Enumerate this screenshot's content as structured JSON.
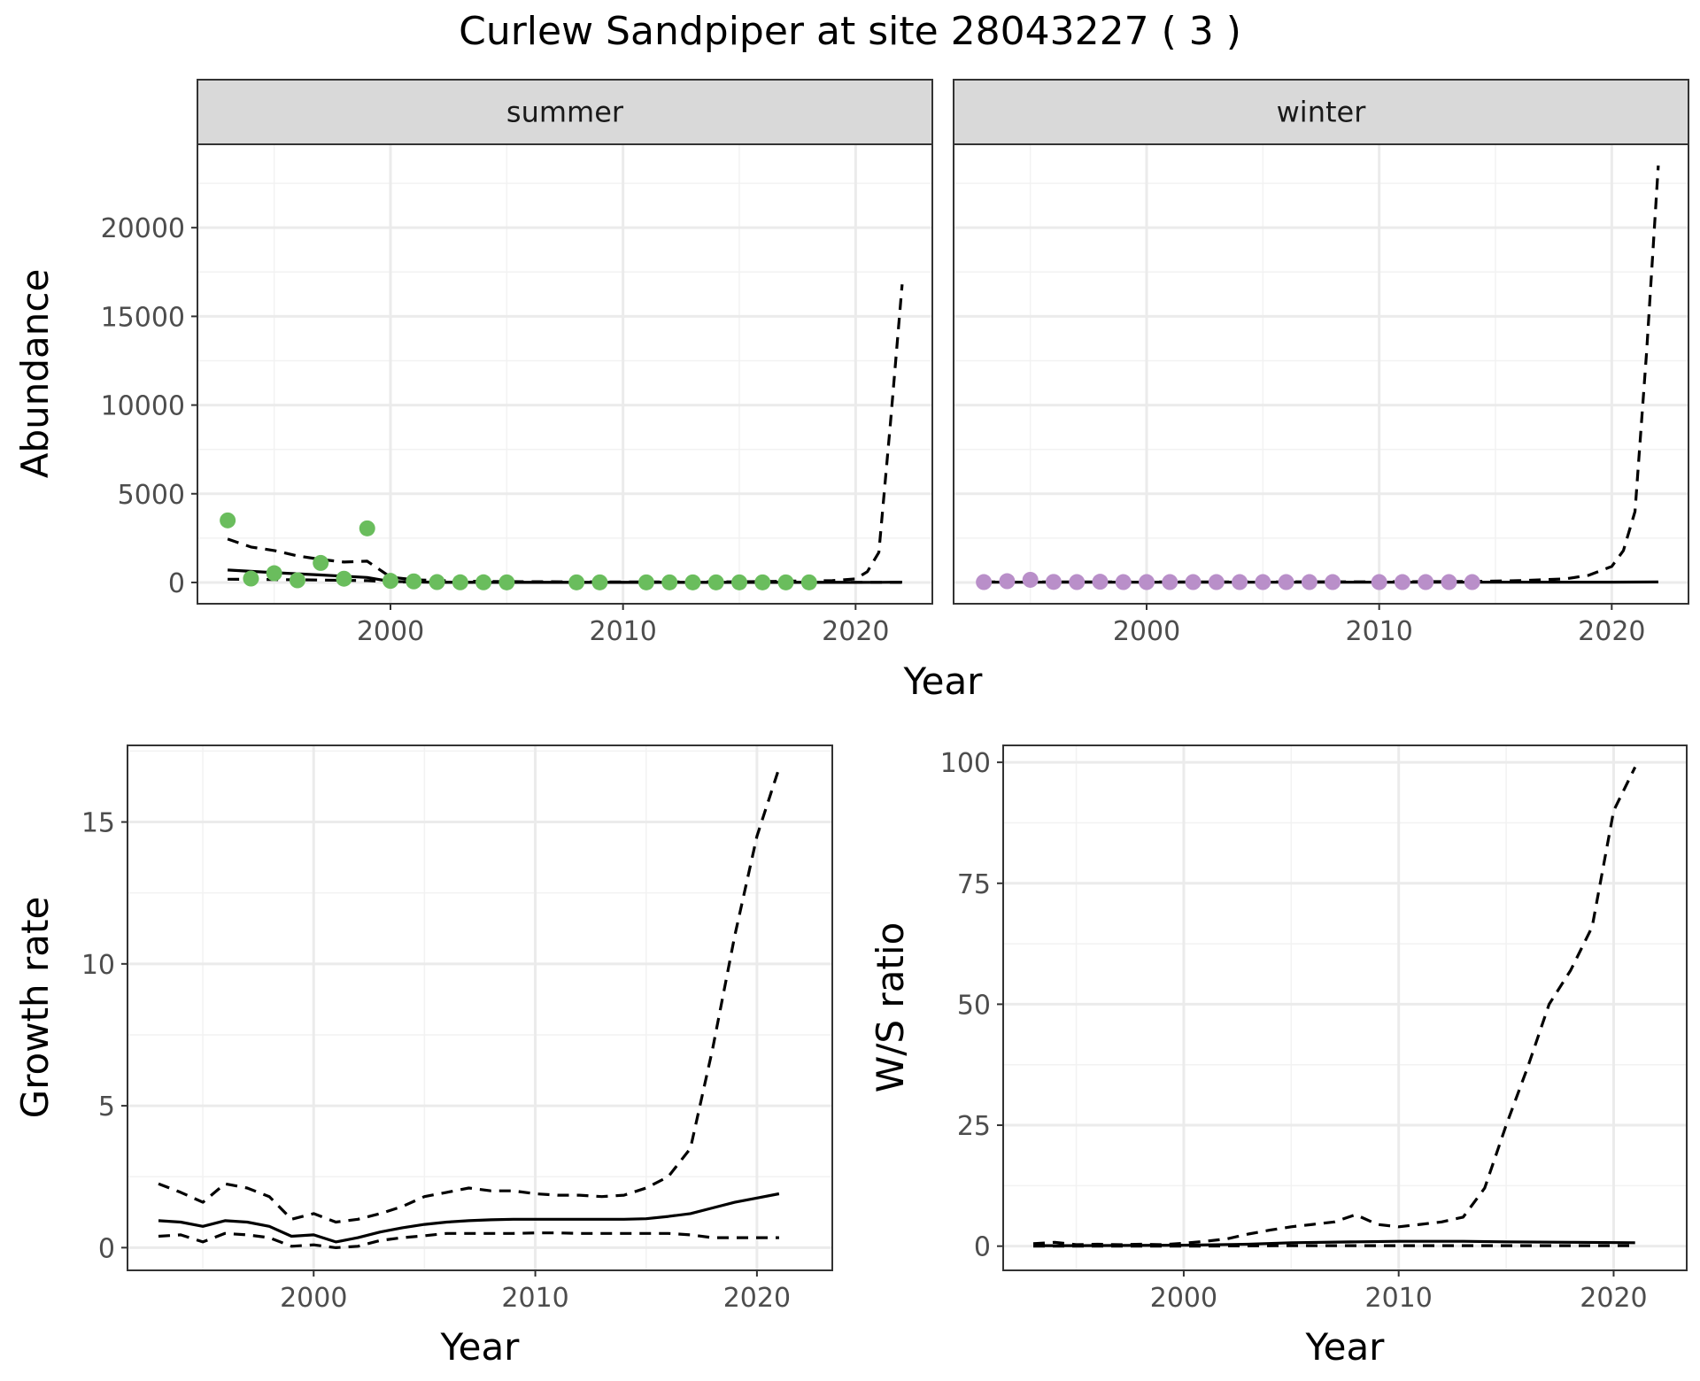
{
  "title": "Curlew Sandpiper at site 28043227 ( 3 )",
  "colors": {
    "summer_points": "#6abd5d",
    "winter_points": "#b98fc9",
    "lines": "#000000",
    "strip_bg": "#d9d9d9",
    "grid": "#ebebeb"
  },
  "chart_data": [
    {
      "type": "scatter",
      "facet": "summer",
      "xlabel": "Year",
      "ylabel": "Abundance",
      "xlim": [
        1991.7,
        2023.3
      ],
      "ylim": [
        -1200,
        24700
      ],
      "xticks": [
        2000,
        2010,
        2020
      ],
      "yticks": [
        0,
        5000,
        10000,
        15000,
        20000
      ],
      "grid": true,
      "points": {
        "x": [
          1993,
          1994,
          1995,
          1996,
          1997,
          1998,
          1999,
          2000,
          2001,
          2002,
          2003,
          2004,
          2005,
          2008,
          2009,
          2011,
          2012,
          2013,
          2014,
          2015,
          2016,
          2017,
          2018
        ],
        "y": [
          3500,
          220,
          520,
          120,
          1100,
          210,
          3050,
          90,
          60,
          20,
          10,
          10,
          5,
          5,
          5,
          5,
          5,
          5,
          5,
          5,
          5,
          5,
          5
        ]
      },
      "series": [
        {
          "style": "solid",
          "x": [
            1993,
            1995,
            1997,
            1999,
            2000,
            2002,
            2005,
            2010,
            2015,
            2020,
            2021,
            2022
          ],
          "y": [
            700,
            550,
            420,
            280,
            60,
            10,
            5,
            5,
            5,
            5,
            10,
            20
          ]
        },
        {
          "style": "dashed",
          "x": [
            1993,
            1994,
            1995,
            1996,
            1997,
            1998,
            1999,
            2000,
            2001,
            2003,
            2005,
            2010,
            2015,
            2019,
            2020,
            2020.5,
            2021,
            2021.5,
            2022
          ],
          "y": [
            2450,
            2000,
            1800,
            1500,
            1300,
            1150,
            1200,
            300,
            150,
            80,
            50,
            30,
            40,
            100,
            200,
            600,
            1700,
            9000,
            16800
          ]
        },
        {
          "style": "dashed",
          "x": [
            1993,
            1996,
            1999,
            2000,
            2005,
            2010,
            2020,
            2022
          ],
          "y": [
            180,
            150,
            100,
            30,
            5,
            2,
            2,
            2
          ]
        }
      ]
    },
    {
      "type": "scatter",
      "facet": "winter",
      "xlabel": "Year",
      "ylabel": "Abundance",
      "xlim": [
        1991.7,
        2023.3
      ],
      "ylim": [
        -1200,
        24700
      ],
      "xticks": [
        2000,
        2010,
        2020
      ],
      "yticks": [
        0,
        5000,
        10000,
        15000,
        20000
      ],
      "grid": true,
      "points": {
        "x": [
          1993,
          1994,
          1995,
          1996,
          1997,
          1998,
          1999,
          2000,
          2001,
          2002,
          2003,
          2004,
          2005,
          2006,
          2007,
          2008,
          2010,
          2011,
          2012,
          2013,
          2014
        ],
        "y": [
          20,
          70,
          150,
          30,
          20,
          40,
          20,
          20,
          20,
          20,
          20,
          20,
          20,
          20,
          20,
          20,
          20,
          20,
          20,
          20,
          20
        ]
      },
      "series": [
        {
          "style": "solid",
          "x": [
            1993,
            2000,
            2010,
            2020,
            2022
          ],
          "y": [
            20,
            20,
            20,
            20,
            30
          ]
        },
        {
          "style": "dashed",
          "x": [
            1993,
            2000,
            2010,
            2014,
            2016,
            2018,
            2019,
            2020,
            2020.5,
            2021,
            2021.5,
            2022
          ],
          "y": [
            30,
            30,
            40,
            60,
            100,
            200,
            400,
            900,
            1800,
            4000,
            13000,
            23500
          ]
        }
      ]
    },
    {
      "type": "line",
      "xlabel": "Year",
      "ylabel": "Growth rate",
      "xlim": [
        1991.6,
        2023.4
      ],
      "ylim": [
        -0.8,
        17.7
      ],
      "xticks": [
        2000,
        2010,
        2020
      ],
      "yticks": [
        0,
        5,
        10,
        15
      ],
      "grid": true,
      "series": [
        {
          "style": "solid",
          "x": [
            1993,
            1994,
            1995,
            1996,
            1997,
            1998,
            1999,
            2000,
            2001,
            2002,
            2003,
            2004,
            2005,
            2006,
            2007,
            2008,
            2009,
            2010,
            2011,
            2012,
            2013,
            2014,
            2015,
            2016,
            2017,
            2018,
            2019,
            2020,
            2021
          ],
          "y": [
            0.95,
            0.9,
            0.75,
            0.95,
            0.9,
            0.75,
            0.4,
            0.45,
            0.2,
            0.35,
            0.55,
            0.7,
            0.82,
            0.9,
            0.95,
            0.98,
            1.0,
            1.0,
            1.0,
            1.0,
            1.0,
            1.0,
            1.02,
            1.1,
            1.2,
            1.4,
            1.6,
            1.75,
            1.9
          ]
        },
        {
          "style": "dashed",
          "x": [
            1993,
            1994,
            1995,
            1996,
            1997,
            1998,
            1999,
            2000,
            2001,
            2002,
            2003,
            2004,
            2005,
            2006,
            2007,
            2008,
            2009,
            2010,
            2011,
            2012,
            2013,
            2014,
            2015,
            2016,
            2017,
            2018,
            2019,
            2020,
            2021
          ],
          "y": [
            2.25,
            1.95,
            1.6,
            2.25,
            2.1,
            1.8,
            1.0,
            1.2,
            0.9,
            1.0,
            1.2,
            1.45,
            1.8,
            1.95,
            2.1,
            2.0,
            2.0,
            1.9,
            1.85,
            1.85,
            1.8,
            1.85,
            2.1,
            2.5,
            3.5,
            7.0,
            11.0,
            14.5,
            16.9
          ]
        },
        {
          "style": "dashed",
          "x": [
            1993,
            1994,
            1995,
            1996,
            1997,
            1998,
            1999,
            2000,
            2001,
            2002,
            2003,
            2004,
            2005,
            2006,
            2007,
            2008,
            2009,
            2010,
            2011,
            2012,
            2013,
            2014,
            2015,
            2016,
            2017,
            2018,
            2019,
            2020,
            2021
          ],
          "y": [
            0.4,
            0.45,
            0.2,
            0.5,
            0.45,
            0.35,
            0.05,
            0.1,
            0.0,
            0.05,
            0.25,
            0.35,
            0.42,
            0.5,
            0.5,
            0.5,
            0.5,
            0.52,
            0.52,
            0.5,
            0.5,
            0.5,
            0.5,
            0.5,
            0.45,
            0.35,
            0.35,
            0.35,
            0.35
          ]
        }
      ]
    },
    {
      "type": "line",
      "xlabel": "Year",
      "ylabel": "W/S ratio",
      "xlim": [
        1991.6,
        2023.4
      ],
      "ylim": [
        -5,
        103.5
      ],
      "xticks": [
        2000,
        2010,
        2020
      ],
      "yticks": [
        0,
        25,
        50,
        75,
        100
      ],
      "grid": true,
      "series": [
        {
          "style": "solid",
          "x": [
            1993,
            1995,
            2000,
            2003,
            2005,
            2008,
            2010,
            2013,
            2015,
            2018,
            2021
          ],
          "y": [
            0.1,
            0.1,
            0.2,
            0.4,
            0.7,
            0.9,
            1.0,
            1.0,
            0.9,
            0.8,
            0.7
          ]
        },
        {
          "style": "dashed",
          "x": [
            1993,
            1994,
            1995,
            1996,
            1997,
            1998,
            1999,
            2000,
            2001,
            2002,
            2003,
            2004,
            2005,
            2006,
            2007,
            2008,
            2009,
            2010,
            2011,
            2012,
            2013,
            2014,
            2015,
            2016,
            2017,
            2018,
            2019,
            2020,
            2021
          ],
          "y": [
            0.5,
            0.8,
            0.3,
            0.4,
            0.3,
            0.4,
            0.3,
            0.6,
            1.0,
            1.5,
            2.5,
            3.3,
            4.0,
            4.5,
            5.0,
            6.5,
            4.5,
            4.0,
            4.5,
            5.0,
            6.0,
            12.0,
            25.0,
            37.0,
            50.0,
            57.0,
            66.0,
            90.0,
            99.0
          ]
        },
        {
          "style": "dashed",
          "x": [
            1993,
            1995,
            2000,
            2005,
            2010,
            2015,
            2018,
            2021
          ],
          "y": [
            0.0,
            0.0,
            0.0,
            0.1,
            0.1,
            0.1,
            0.1,
            0.1
          ]
        }
      ]
    }
  ]
}
